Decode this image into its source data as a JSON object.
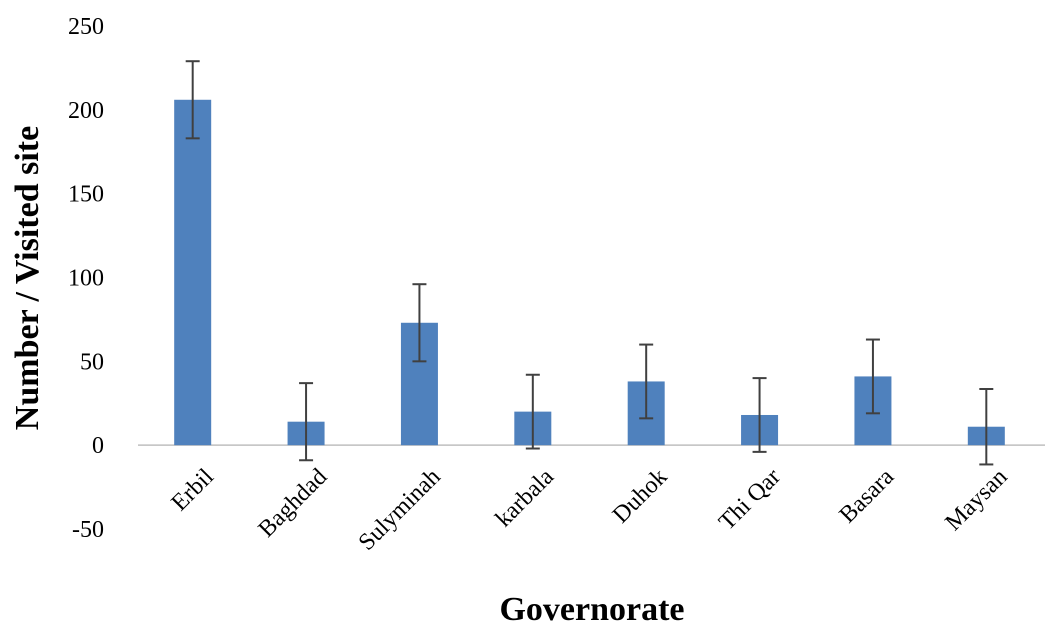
{
  "chart_data": {
    "type": "bar",
    "title": "",
    "xlabel": "Governorate",
    "ylabel": "Number / Visited site",
    "categories": [
      "Erbil",
      "Baghdad",
      "Sulyminah",
      "karbala",
      "Duhok",
      "Thi Qar",
      "Basara",
      "Maysan"
    ],
    "series": [
      {
        "values": [
          206,
          14,
          73,
          20,
          38,
          18,
          41,
          11
        ],
        "error": [
          23,
          23,
          23,
          22,
          22,
          22,
          22,
          22.5
        ]
      }
    ],
    "ylim": [
      -50,
      250
    ],
    "yticks": [
      -50,
      0,
      50,
      100,
      150,
      200,
      250
    ],
    "ytick_labels": [
      "-50",
      "0",
      "50",
      "100",
      "150",
      "200",
      "250"
    ],
    "grid": false,
    "legend": "none",
    "colors": {
      "bar": "#4f81bd",
      "error_bar": "#404040",
      "axis": "#bfbfbf"
    }
  }
}
